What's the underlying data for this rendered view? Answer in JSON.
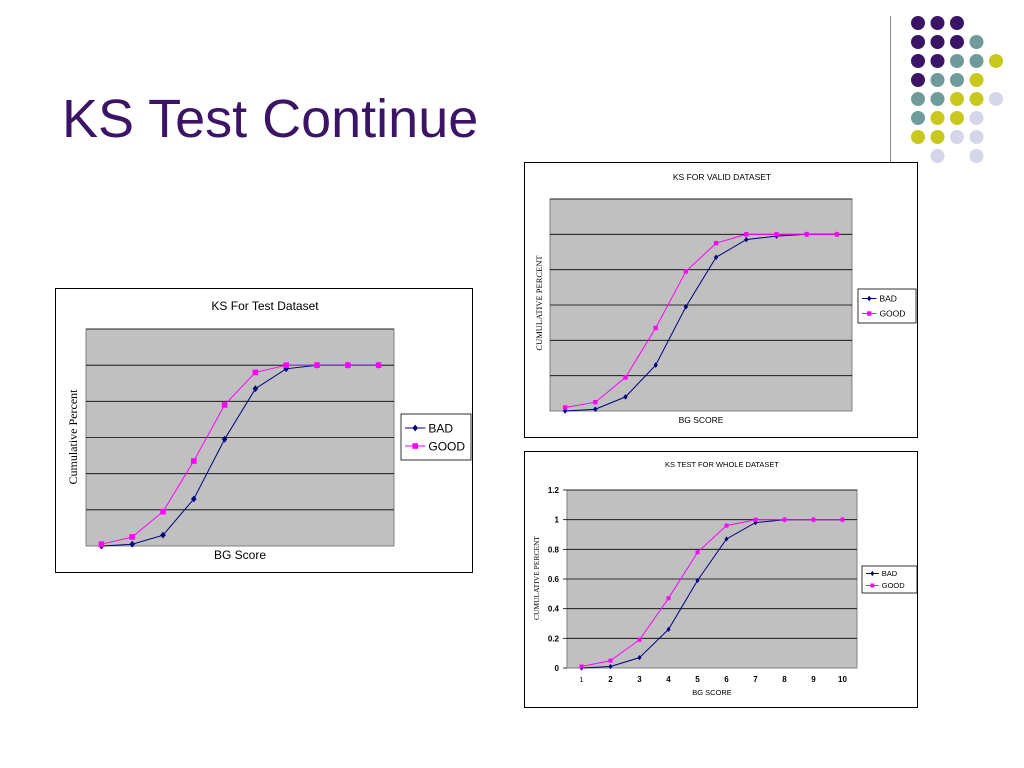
{
  "slide": {
    "title": "KS Test Continue"
  },
  "colors": {
    "title": "#3b1466",
    "bad_series": "#000080",
    "good_series": "#ff00ff",
    "plot_background": "#c0c0c0",
    "dot_purple": "#3b1466",
    "dot_teal": "#6f9c9a",
    "dot_yellow": "#c8c81e",
    "dot_lavender": "#d6d6ea"
  },
  "chart_data": [
    {
      "id": "test",
      "type": "line",
      "title": "KS For Test Dataset",
      "xlabel": "BG Score",
      "ylabel": "Cumulative Percent",
      "x": [
        1,
        2,
        3,
        4,
        5,
        6,
        7,
        8,
        9,
        10
      ],
      "ylim": [
        0,
        1.2
      ],
      "y_gridlines": [
        0.2,
        0.4,
        0.6,
        0.8,
        1.0,
        1.2
      ],
      "show_tick_labels": false,
      "legend_position": "right",
      "series": [
        {
          "name": "BAD",
          "values": [
            0.0,
            0.01,
            0.06,
            0.26,
            0.59,
            0.87,
            0.98,
            1.0,
            1.0,
            1.0
          ]
        },
        {
          "name": "GOOD",
          "values": [
            0.01,
            0.05,
            0.19,
            0.47,
            0.78,
            0.96,
            1.0,
            1.0,
            1.0,
            1.0
          ]
        }
      ]
    },
    {
      "id": "valid",
      "type": "line",
      "title": "KS FOR VALID DATASET",
      "xlabel": "BG SCORE",
      "ylabel": "CUMULATIVE PERCENT",
      "x": [
        1,
        2,
        3,
        4,
        5,
        6,
        7,
        8,
        9,
        10
      ],
      "ylim": [
        0,
        1.2
      ],
      "y_gridlines": [
        0.2,
        0.4,
        0.6,
        0.8,
        1.0,
        1.2
      ],
      "show_tick_labels": false,
      "legend_position": "right",
      "series": [
        {
          "name": "BAD",
          "values": [
            0.0,
            0.01,
            0.08,
            0.26,
            0.59,
            0.87,
            0.97,
            0.99,
            1.0,
            1.0
          ]
        },
        {
          "name": "GOOD",
          "values": [
            0.02,
            0.05,
            0.19,
            0.47,
            0.79,
            0.95,
            1.0,
            1.0,
            1.0,
            1.0
          ]
        }
      ]
    },
    {
      "id": "whole",
      "type": "line",
      "title": "KS TEST FOR WHOLE DATASET",
      "xlabel": "BG SCORE",
      "ylabel": "CUMULATIVE PERCENT",
      "x": [
        1,
        2,
        3,
        4,
        5,
        6,
        7,
        8,
        9,
        10
      ],
      "ylim": [
        0,
        1.2
      ],
      "y_ticks": [
        "0",
        "0.2",
        "0.4",
        "0.6",
        "0.8",
        "1",
        "1.2"
      ],
      "y_gridlines": [
        0.2,
        0.4,
        0.6,
        0.8,
        1.0,
        1.2
      ],
      "show_tick_labels": true,
      "legend_position": "right",
      "series": [
        {
          "name": "BAD",
          "values": [
            0.0,
            0.01,
            0.07,
            0.26,
            0.59,
            0.87,
            0.98,
            1.0,
            1.0,
            1.0
          ]
        },
        {
          "name": "GOOD",
          "values": [
            0.01,
            0.05,
            0.19,
            0.47,
            0.78,
            0.96,
            1.0,
            1.0,
            1.0,
            1.0
          ]
        }
      ]
    }
  ]
}
